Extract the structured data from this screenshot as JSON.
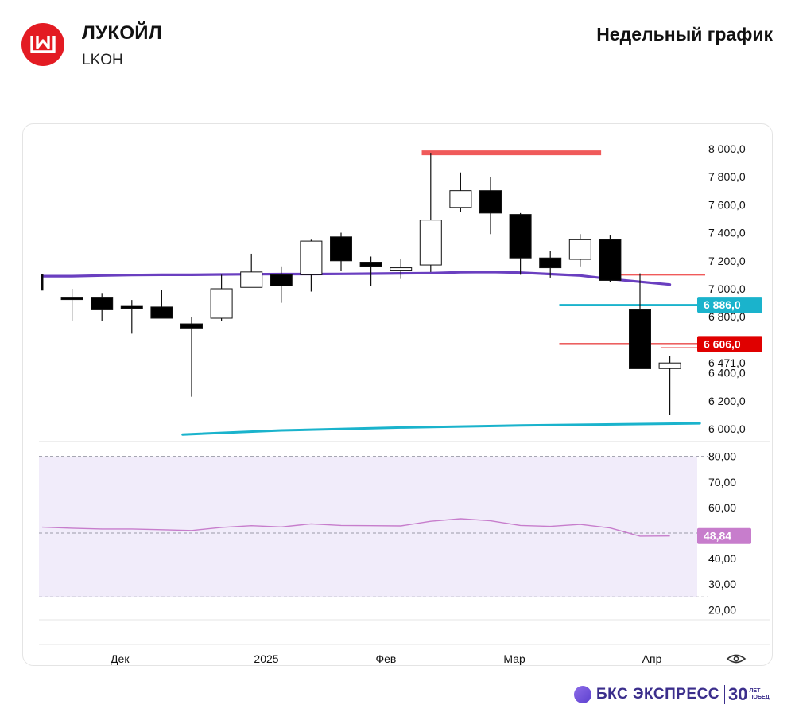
{
  "header": {
    "name": "ЛУКОЙЛ",
    "ticker": "LKOH",
    "chart_kind": "Недельный график"
  },
  "footer": {
    "brand": "БКС ЭКСПРЕСС",
    "years": "30",
    "years_line1": "ЛЕТ",
    "years_line2": "ПОБЕД"
  },
  "colors": {
    "brand_red": "#e31b23",
    "candle_down": "#000000",
    "candle_up": "#ffffff",
    "ma_purple": "#6a3fc0",
    "ma_cyan": "#1ab3cc",
    "resistance": "#f05a5a",
    "support_red": "#e00000",
    "rsi_line": "#c77dcc",
    "rsi_fill": "#f1ecfa"
  },
  "chart_data": [
    {
      "type": "candlestick",
      "title": "",
      "ylim": [
        5950,
        8050
      ],
      "y_ticks": [
        8000,
        7800,
        7600,
        7400,
        7200,
        7000,
        6800,
        6400,
        6200,
        6000
      ],
      "y_tick_labels": [
        "8 000,0",
        "7 800,0",
        "7 600,0",
        "7 400,0",
        "7 200,0",
        "7 000,0",
        "6 800,0",
        "6 400,0",
        "6 200,0",
        "6 000,0"
      ],
      "x_labels": [
        "Дек",
        "2025",
        "Фев",
        "Мар",
        "Апр"
      ],
      "candles": [
        {
          "o": 7100,
          "h": 7100,
          "l": 6990,
          "c": 6990
        },
        {
          "o": 6940,
          "h": 7000,
          "l": 6770,
          "c": 6930
        },
        {
          "o": 6940,
          "h": 6970,
          "l": 6770,
          "c": 6850
        },
        {
          "o": 6880,
          "h": 6920,
          "l": 6680,
          "c": 6860
        },
        {
          "o": 6870,
          "h": 6990,
          "l": 6800,
          "c": 6790
        },
        {
          "o": 6750,
          "h": 6800,
          "l": 6230,
          "c": 6720
        },
        {
          "o": 6790,
          "h": 7100,
          "l": 6770,
          "c": 7000
        },
        {
          "o": 7010,
          "h": 7250,
          "l": 7010,
          "c": 7120
        },
        {
          "o": 7100,
          "h": 7160,
          "l": 6900,
          "c": 7020
        },
        {
          "o": 7100,
          "h": 7350,
          "l": 6980,
          "c": 7340
        },
        {
          "o": 7370,
          "h": 7400,
          "l": 7130,
          "c": 7200
        },
        {
          "o": 7190,
          "h": 7230,
          "l": 7020,
          "c": 7160
        },
        {
          "o": 7150,
          "h": 7210,
          "l": 7070,
          "c": 7150
        },
        {
          "o": 7170,
          "h": 7970,
          "l": 7120,
          "c": 7490
        },
        {
          "o": 7580,
          "h": 7830,
          "l": 7550,
          "c": 7700
        },
        {
          "o": 7700,
          "h": 7800,
          "l": 7390,
          "c": 7540
        },
        {
          "o": 7530,
          "h": 7540,
          "l": 7100,
          "c": 7220
        },
        {
          "o": 7220,
          "h": 7270,
          "l": 7080,
          "c": 7150
        },
        {
          "o": 7210,
          "h": 7390,
          "l": 7160,
          "c": 7350
        },
        {
          "o": 7350,
          "h": 7380,
          "l": 7050,
          "c": 7060
        },
        {
          "o": 6850,
          "h": 7110,
          "l": 6430,
          "c": 6430
        },
        {
          "o": 6431,
          "h": 6520,
          "l": 6100,
          "c": 6471
        }
      ],
      "ma_purple": [
        7090,
        7090,
        7095,
        7098,
        7100,
        7100,
        7102,
        7104,
        7105,
        7105,
        7106,
        7108,
        7110,
        7112,
        7118,
        7120,
        7115,
        7105,
        7095,
        7070,
        7050,
        7030
      ],
      "ma_cyan_points": [
        [
          4.7,
          5960
        ],
        [
          8,
          5990
        ],
        [
          12,
          6010
        ],
        [
          16,
          6025
        ],
        [
          20,
          6035
        ],
        [
          22,
          6040
        ]
      ],
      "levels": [
        {
          "value": 7970,
          "color": "#f05a5a",
          "from": 12.7,
          "to": 18.7
        },
        {
          "value": 7100,
          "color": "#f05a5a",
          "from": 19.3,
          "to": 22.5
        },
        {
          "value": 6886,
          "color": "#1ab3cc",
          "from": 17.3,
          "to": 22.5
        },
        {
          "value": 6606,
          "color": "#e00000",
          "from": 17.3,
          "to": 22.5
        },
        {
          "value": 6580,
          "color": "#f5a0a0",
          "from": 20.7,
          "to": 22.4
        }
      ],
      "value_badges": [
        {
          "label": "6 886,0",
          "value": 6886,
          "color": "#1ab3cc"
        },
        {
          "label": "6 606,0",
          "value": 6606,
          "color": "#e00000"
        },
        {
          "label": "6 471,0",
          "value": 6471,
          "color": null
        }
      ]
    },
    {
      "type": "line",
      "title": "",
      "ylim": [
        17,
        83
      ],
      "y_ticks": [
        80,
        70,
        60,
        40,
        30,
        20
      ],
      "y_tick_labels": [
        "80,00",
        "70,00",
        "60,00",
        "40,00",
        "30,00",
        "20,00"
      ],
      "band": [
        25,
        80
      ],
      "mid_line": 50,
      "values": [
        52.3,
        51.9,
        51.6,
        51.6,
        51.3,
        51.0,
        52.2,
        52.9,
        52.4,
        53.6,
        53.0,
        52.9,
        52.8,
        54.6,
        55.6,
        54.8,
        53.0,
        52.6,
        53.4,
        52.0,
        48.8,
        48.84
      ],
      "last_label": "48,84",
      "last_color": "#c77dcc"
    }
  ]
}
